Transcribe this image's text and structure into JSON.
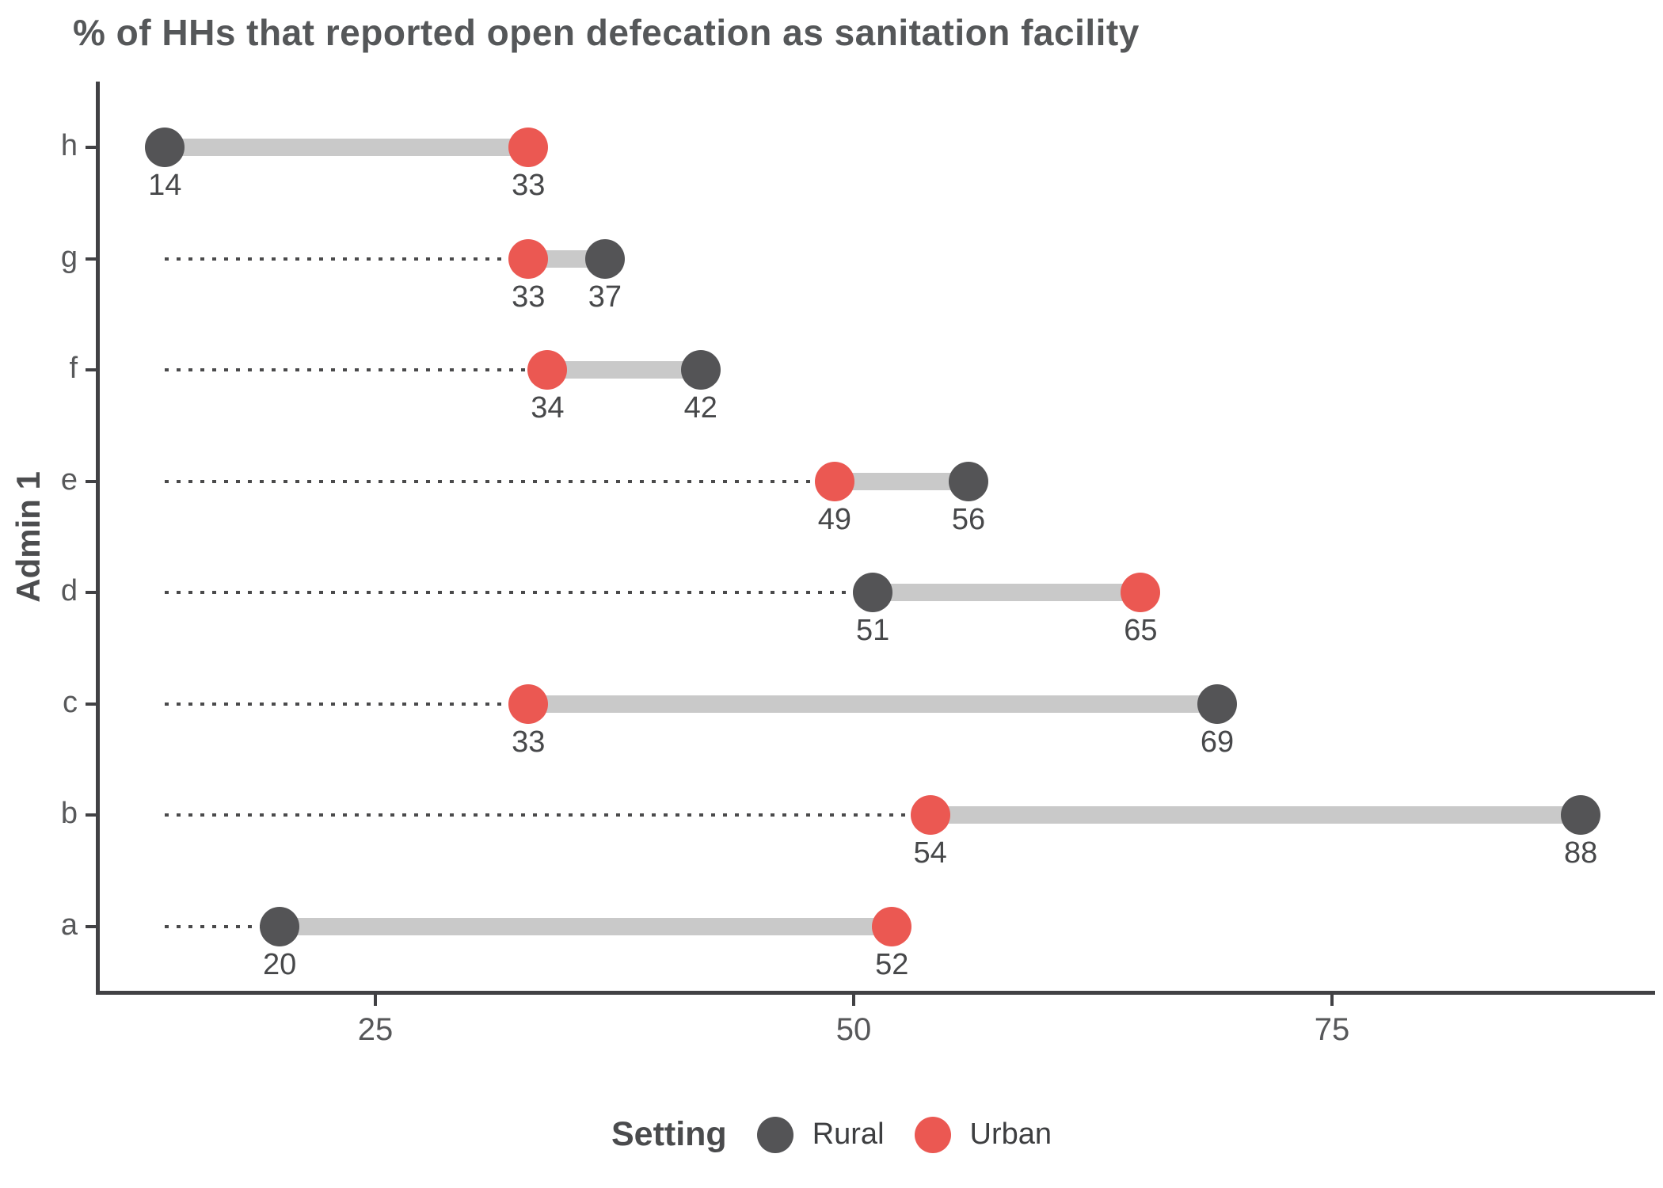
{
  "chart_data": {
    "type": "scatter",
    "variant": "dumbbell",
    "title": "% of HHs that reported open defecation as sanitation facility",
    "xlabel": "",
    "ylabel": "Admin 1",
    "categories": [
      "h",
      "g",
      "f",
      "e",
      "d",
      "c",
      "b",
      "a"
    ],
    "series": [
      {
        "name": "Rural",
        "color": "#545456",
        "values": [
          14,
          37,
          42,
          56,
          51,
          69,
          88,
          20
        ]
      },
      {
        "name": "Urban",
        "color": "#eb5852",
        "values": [
          33,
          33,
          34,
          49,
          65,
          33,
          54,
          52
        ]
      }
    ],
    "x_axis": {
      "ticks": [
        25,
        50,
        75
      ],
      "range": [
        10,
        92
      ]
    },
    "baseline_start_value": 14,
    "grid": false,
    "legend": {
      "title": "Setting",
      "position": "bottom",
      "entries": [
        "Rural",
        "Urban"
      ]
    },
    "colors": {
      "connector": "#c9c9c9",
      "dotted_line": "#4a4a4b",
      "axis": "#414144",
      "axis_text": "#57585a",
      "title_text": "#555759",
      "value_label_text": "#47484a"
    }
  }
}
